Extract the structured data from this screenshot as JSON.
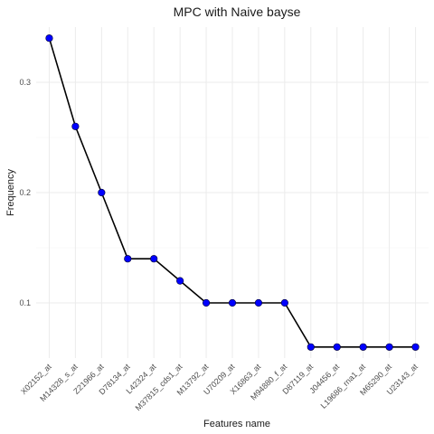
{
  "chart_data": {
    "type": "line",
    "title": "MPC with Naive bayse",
    "xlabel": "Features name",
    "ylabel": "Frequency",
    "categories": [
      "X02152_at",
      "M14328_s_at",
      "Z21966_at",
      "D78134_at",
      "L42324_at",
      "M37815_cds1_at",
      "M13792_at",
      "U70209_at",
      "X16863_at",
      "M94880_f_at",
      "D87119_at",
      "J04456_at",
      "L19686_rna1_at",
      "M65290_at",
      "U23143_at"
    ],
    "series": [
      {
        "values": [
          0.34,
          0.26,
          0.2,
          0.14,
          0.14,
          0.12,
          0.1,
          0.1,
          0.1,
          0.1,
          0.06,
          0.06,
          0.06,
          0.06,
          0.06
        ]
      }
    ],
    "ylim": [
      0.05,
      0.35
    ],
    "yticks": [
      0.1,
      0.2,
      0.3
    ],
    "ytick_labels": [
      "0.1",
      "0.2",
      "0.3"
    ],
    "grid": true,
    "colors": {
      "line": "#000000",
      "point": "#0000ff",
      "grid": "#ebebeb",
      "text": "#1a1a1a",
      "tick_text": "#4d4d4d"
    }
  }
}
